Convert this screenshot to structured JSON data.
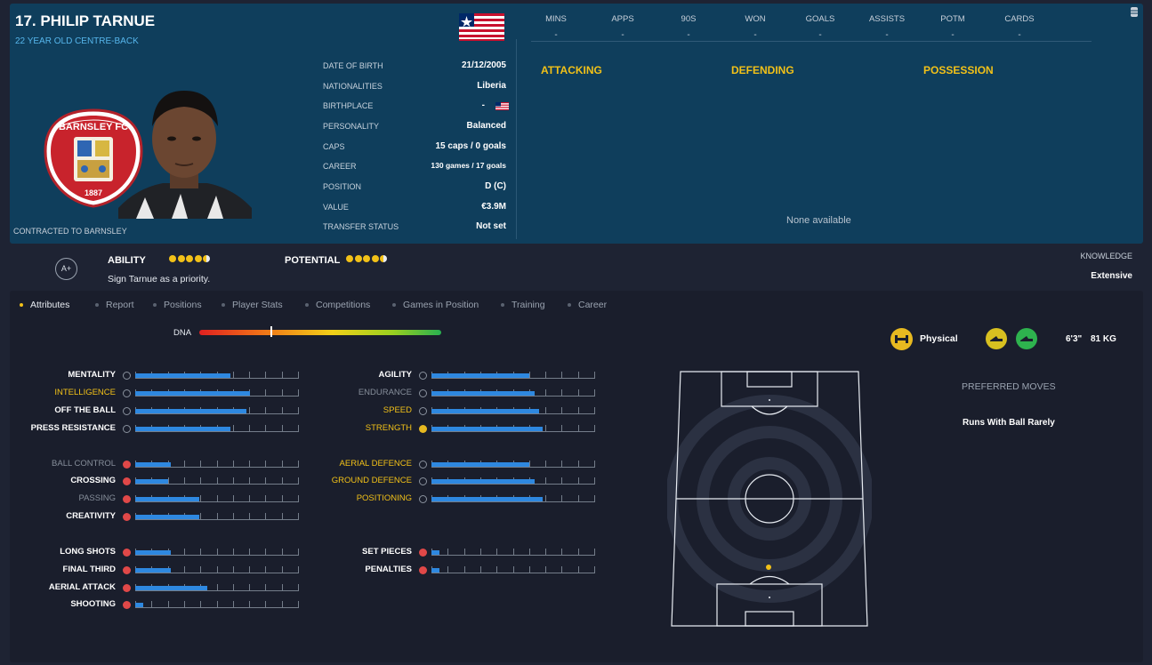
{
  "player": {
    "name": "17. PHILIP TARNUE",
    "subtitle": "22 YEAR OLD CENTRE-BACK",
    "contract": "CONTRACTED TO BARNSLEY"
  },
  "club": {
    "crest_text": "BARNSLEY FC",
    "crest_year": "1887"
  },
  "info": [
    {
      "label": "DATE OF BIRTH",
      "value": "21/12/2005"
    },
    {
      "label": "NATIONALITIES",
      "value": "Liberia"
    },
    {
      "label": "BIRTHPLACE",
      "value": "-"
    },
    {
      "label": "PERSONALITY",
      "value": "Balanced"
    },
    {
      "label": "CAPS",
      "value": "15 caps / 0 goals"
    },
    {
      "label": "CAREER",
      "value": "130 games / 17 goals"
    },
    {
      "label": "POSITION",
      "value": "D (C)"
    },
    {
      "label": "VALUE",
      "value": "€3.9M"
    },
    {
      "label": "TRANSFER STATUS",
      "value": "Not set"
    }
  ],
  "stats": {
    "headers": [
      "MINS",
      "APPS",
      "90S",
      "WON",
      "GOALS",
      "ASSISTS",
      "POTM",
      "CARDS"
    ],
    "values": [
      "-",
      "-",
      "-",
      "-",
      "-",
      "-",
      "-",
      "-"
    ]
  },
  "sections": {
    "attacking": "ATTACKING",
    "defending": "DEFENDING",
    "possession": "POSSESSION",
    "none": "None available"
  },
  "rating": {
    "grade": "A+",
    "ability_label": "ABILITY",
    "ability_stars": 4.5,
    "potential_label": "POTENTIAL",
    "potential_stars": 4.5,
    "recommendation": "Sign Tarnue as a priority.",
    "knowledge_label": "KNOWLEDGE",
    "knowledge_value": "Extensive"
  },
  "tabs": [
    "Attributes",
    "Report",
    "Positions",
    "Player Stats",
    "Competitions",
    "Games in Position",
    "Training",
    "Career"
  ],
  "dna": {
    "label": "DNA",
    "level": 0.3
  },
  "attributes": {
    "left": [
      {
        "name": "MENTALITY",
        "style": "w",
        "value": 0.58,
        "icon": "neutral"
      },
      {
        "name": "INTELLIGENCE",
        "style": "y",
        "value": 0.7,
        "icon": "neutral"
      },
      {
        "name": "OFF THE BALL",
        "style": "w",
        "value": 0.68,
        "icon": "neutral"
      },
      {
        "name": "PRESS RESISTANCE",
        "style": "w",
        "value": 0.58,
        "icon": "neutral"
      },
      {
        "name": "BALL CONTROL",
        "style": "g",
        "value": 0.22,
        "icon": "red"
      },
      {
        "name": "CROSSING",
        "style": "w",
        "value": 0.2,
        "icon": "red"
      },
      {
        "name": "PASSING",
        "style": "g",
        "value": 0.39,
        "icon": "red"
      },
      {
        "name": "CREATIVITY",
        "style": "w",
        "value": 0.39,
        "icon": "red"
      },
      {
        "name": "LONG SHOTS",
        "style": "w",
        "value": 0.22,
        "icon": "red"
      },
      {
        "name": "FINAL THIRD",
        "style": "w",
        "value": 0.22,
        "icon": "red"
      },
      {
        "name": "AERIAL ATTACK",
        "style": "w",
        "value": 0.44,
        "icon": "red"
      },
      {
        "name": "SHOOTING",
        "style": "w",
        "value": 0.05,
        "icon": "red"
      }
    ],
    "right": [
      {
        "name": "AGILITY",
        "style": "w",
        "value": 0.6,
        "icon": "neutral"
      },
      {
        "name": "ENDURANCE",
        "style": "g",
        "value": 0.63,
        "icon": "neutral"
      },
      {
        "name": "SPEED",
        "style": "y",
        "value": 0.66,
        "icon": "neutral"
      },
      {
        "name": "STRENGTH",
        "style": "y",
        "value": 0.68,
        "icon": "yellow"
      },
      {
        "name": "AERIAL DEFENCE",
        "style": "y",
        "value": 0.6,
        "icon": "neutral"
      },
      {
        "name": "GROUND DEFENCE",
        "style": "y",
        "value": 0.63,
        "icon": "neutral"
      },
      {
        "name": "POSITIONING",
        "style": "y",
        "value": 0.68,
        "icon": "neutral"
      },
      {
        "name": "SET PIECES",
        "style": "w",
        "value": 0.05,
        "icon": "red"
      },
      {
        "name": "PENALTIES",
        "style": "w",
        "value": 0.05,
        "icon": "red"
      }
    ]
  },
  "physical": {
    "label": "Physical",
    "height": "6'3\"",
    "weight": "81 KG"
  },
  "preferred_moves": {
    "label": "PREFERRED MOVES",
    "value": "Runs With Ball Rarely"
  },
  "colors": {
    "accent": "#f2c118",
    "header_bg": "#0f3e5c",
    "bar": "#2e88e0",
    "link": "#56b6ec"
  }
}
